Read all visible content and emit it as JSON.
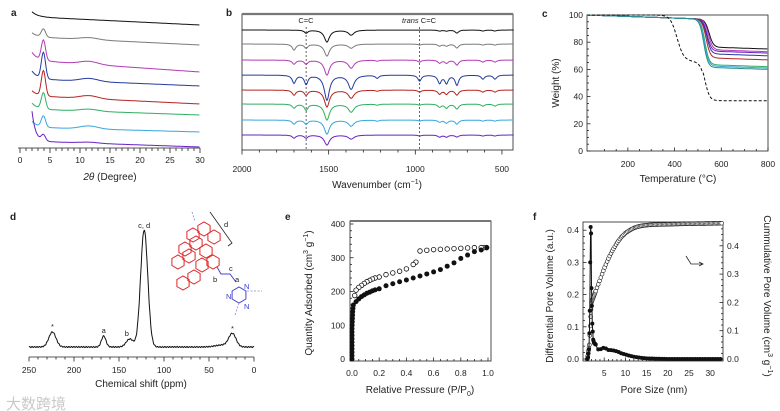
{
  "watermark": "大数跨境",
  "chart_data": [
    {
      "panel": "a",
      "type": "line",
      "xlabel": "2θ (Degree)",
      "xlim": [
        0,
        30
      ],
      "xticks": [
        "0",
        "5",
        "10",
        "15",
        "20",
        "25",
        "30"
      ],
      "yaxis": "stacked intensity (a.u., unlabeled)",
      "series": [
        {
          "color": "#111111",
          "b6": 130,
          "b30": 123,
          "low": 5,
          "peak": 0,
          "hump": 0
        },
        {
          "color": "#7a7a7a",
          "b6": 110,
          "b30": 103,
          "low": 4,
          "peak": 8,
          "hump": 2
        },
        {
          "color": "#b23ab4",
          "b6": 86,
          "b30": 76,
          "low": 8,
          "peak": 20,
          "hump": 3
        },
        {
          "color": "#263a9e",
          "b6": 68,
          "b30": 62,
          "low": 8,
          "peak": 26,
          "hump": 3
        },
        {
          "color": "#b32424",
          "b6": 51,
          "b30": 44,
          "low": 5,
          "peak": 25,
          "hump": 3
        },
        {
          "color": "#2fae62",
          "b6": 38,
          "b30": 33,
          "low": 6,
          "peak": 16,
          "hump": 2
        },
        {
          "color": "#36a6df",
          "b6": 20,
          "b30": 16,
          "low": 6,
          "peak": 11,
          "hump": 3
        },
        {
          "color": "#6a20c4",
          "b6": 6,
          "b30": 1,
          "low": 30,
          "peak": 6,
          "hump": 1
        }
      ]
    },
    {
      "panel": "b",
      "type": "line",
      "xlabel": "Wavenumber (cm",
      "xlabel_sup": "−1",
      "xlabel_end": ")",
      "xlim": [
        2000,
        430
      ],
      "xticks": [
        "2000",
        "1500",
        "1000",
        "500"
      ],
      "annotations": {
        "cc": "C=C",
        "trans_italic": "trans",
        "trans_rest": " C=C"
      },
      "annotation_positions": [
        1630,
        975
      ],
      "peak_positions": [
        1700,
        1630,
        1510,
        1370,
        1220,
        975,
        860,
        820,
        760,
        610,
        540
      ],
      "series": [
        {
          "color": "#111111",
          "depths": [
            0,
            3,
            12,
            5,
            0,
            0,
            1,
            1,
            3,
            1,
            1
          ]
        },
        {
          "color": "#7a7a7a",
          "depths": [
            6,
            4,
            12,
            4,
            0,
            1,
            2,
            2,
            4,
            1,
            1
          ]
        },
        {
          "color": "#b23ab4",
          "depths": [
            4,
            4,
            15,
            8,
            1,
            2,
            3,
            3,
            5,
            2,
            2
          ]
        },
        {
          "color": "#263a9e",
          "depths": [
            8,
            9,
            25,
            14,
            3,
            6,
            8,
            8,
            10,
            4,
            4
          ]
        },
        {
          "color": "#b32424",
          "depths": [
            5,
            5,
            17,
            8,
            1,
            2,
            4,
            4,
            5,
            2,
            2
          ]
        },
        {
          "color": "#2fae62",
          "depths": [
            4,
            6,
            16,
            8,
            1,
            1,
            3,
            4,
            5,
            2,
            2
          ]
        },
        {
          "color": "#36a6df",
          "depths": [
            4,
            4,
            14,
            6,
            1,
            1,
            2,
            3,
            4,
            1,
            1
          ]
        },
        {
          "color": "#6a20c4",
          "depths": [
            3,
            3,
            10,
            4,
            0,
            1,
            2,
            2,
            2,
            1,
            1
          ]
        }
      ]
    },
    {
      "panel": "c",
      "type": "line",
      "xlabel": "Temperature (°C)",
      "ylabel": "Weight (%)",
      "xlim": [
        25,
        800
      ],
      "ylim": [
        0,
        100
      ],
      "xticks": [
        "200",
        "400",
        "600",
        "800"
      ],
      "yticks": [
        "0",
        "20",
        "40",
        "60",
        "80",
        "100"
      ],
      "series": [
        {
          "color": "#111111",
          "onset": 548,
          "residue": 75
        },
        {
          "color": "#b23ab4",
          "onset": 545,
          "residue": 73
        },
        {
          "color": "#6a20c4",
          "onset": 540,
          "residue": 72
        },
        {
          "color": "#263a9e",
          "onset": 538,
          "residue": 70
        },
        {
          "color": "#b32424",
          "onset": 535,
          "residue": 67
        },
        {
          "color": "#2fae62",
          "onset": 530,
          "residue": 62
        },
        {
          "color": "#36a6df",
          "onset": 528,
          "residue": 61
        },
        {
          "color": "#2a8f8f",
          "onset": 525,
          "residue": 60
        }
      ],
      "dashed": {
        "color": "#111111",
        "step1": 410,
        "level1": 67,
        "step2": 530,
        "residue": 37
      }
    },
    {
      "panel": "d",
      "type": "line",
      "xlabel": "Chemical shift (ppm)",
      "xlim": [
        250,
        0
      ],
      "xticks": [
        "250",
        "200",
        "150",
        "100",
        "50",
        "0"
      ],
      "peaks": [
        {
          "ppm": 224,
          "height": 15,
          "width": 4,
          "label": "*"
        },
        {
          "ppm": 167,
          "height": 11,
          "width": 2.5,
          "label": "a"
        },
        {
          "ppm": 138,
          "height": 8,
          "width": 4,
          "label": "b"
        },
        {
          "ppm": 122,
          "height": 117,
          "width": 4,
          "label": "c, d"
        },
        {
          "ppm": 35,
          "height": 2,
          "width": 8,
          "label": ""
        },
        {
          "ppm": 24,
          "height": 13,
          "width": 4,
          "label": "*"
        }
      ],
      "structure_labels": {
        "a": "a",
        "b": "b",
        "c": "c",
        "d": "d",
        "n": "N"
      }
    },
    {
      "panel": "e",
      "type": "scatter",
      "xlabel": "Relative Pressure (P/P",
      "xlabel_sub": "0",
      "xlabel_end": ")",
      "ylabel": "Quantity Adsorbed (cm",
      "ylabel_sup": "3",
      "ylabel_mid": " g",
      "ylabel_sup2": "−1",
      "ylabel_end": ")",
      "xlim": [
        0,
        1
      ],
      "ylim": [
        0,
        400
      ],
      "xticks": [
        "0.0",
        "0.2",
        "0.4",
        "0.6",
        "0.8",
        "1.0"
      ],
      "yticks": [
        "0",
        "100",
        "200",
        "300",
        "400"
      ],
      "adsorption": [
        [
          0,
          0
        ],
        [
          0,
          10
        ],
        [
          0,
          20
        ],
        [
          0,
          30
        ],
        [
          0,
          40
        ],
        [
          0,
          50
        ],
        [
          0,
          60
        ],
        [
          0,
          70
        ],
        [
          0,
          80
        ],
        [
          0,
          90
        ],
        [
          0.001,
          100
        ],
        [
          0.002,
          110
        ],
        [
          0.003,
          120
        ],
        [
          0.004,
          130
        ],
        [
          0.005,
          140
        ],
        [
          0.007,
          150
        ],
        [
          0.01,
          160
        ],
        [
          0.03,
          170
        ],
        [
          0.05,
          178
        ],
        [
          0.07,
          185
        ],
        [
          0.09,
          190
        ],
        [
          0.11,
          195
        ],
        [
          0.13,
          198
        ],
        [
          0.15,
          202
        ],
        [
          0.17,
          205
        ],
        [
          0.2,
          208
        ],
        [
          0.25,
          217
        ],
        [
          0.3,
          223
        ],
        [
          0.35,
          229
        ],
        [
          0.4,
          234
        ],
        [
          0.45,
          240
        ],
        [
          0.5,
          246
        ],
        [
          0.55,
          252
        ],
        [
          0.6,
          258
        ],
        [
          0.65,
          265
        ],
        [
          0.7,
          275
        ],
        [
          0.75,
          285
        ],
        [
          0.8,
          298
        ],
        [
          0.85,
          308
        ],
        [
          0.9,
          318
        ],
        [
          0.95,
          323
        ],
        [
          0.99,
          330
        ]
      ],
      "desorption": [
        [
          0.99,
          330
        ],
        [
          0.97,
          330
        ],
        [
          0.95,
          330
        ],
        [
          0.9,
          330
        ],
        [
          0.85,
          329
        ],
        [
          0.8,
          328
        ],
        [
          0.75,
          327
        ],
        [
          0.7,
          326
        ],
        [
          0.65,
          325
        ],
        [
          0.6,
          324
        ],
        [
          0.55,
          322
        ],
        [
          0.5,
          320
        ],
        [
          0.47,
          287
        ],
        [
          0.45,
          280
        ],
        [
          0.4,
          267
        ],
        [
          0.35,
          260
        ],
        [
          0.3,
          255
        ],
        [
          0.25,
          250
        ],
        [
          0.2,
          243
        ],
        [
          0.17,
          240
        ],
        [
          0.15,
          237
        ],
        [
          0.13,
          233
        ],
        [
          0.11,
          229
        ],
        [
          0.09,
          224
        ],
        [
          0.07,
          218
        ],
        [
          0.05,
          212
        ],
        [
          0.03,
          204
        ],
        [
          0.02,
          188
        ]
      ]
    },
    {
      "panel": "f",
      "type": "scatter",
      "xlabel": "Pore Size (nm)",
      "ylabel_left": "Differential Pore Volume (a.u.)",
      "ylabel_right": "Cummulative Pore Volume (cm",
      "ylabel_right_sup": "3",
      "ylabel_right_mid": " g",
      "ylabel_right_sup2": "−1",
      "ylabel_right_end": ")",
      "xlim": [
        0,
        34
      ],
      "ylim_left": [
        0,
        0.43
      ],
      "ylim_right": [
        0,
        0.48
      ],
      "xticks": [
        "5",
        "10",
        "15",
        "20",
        "25",
        "30"
      ],
      "yticks_left": [
        "0.0",
        "0.1",
        "0.2",
        "0.3",
        "0.4"
      ],
      "yticks_right": [
        "0.0",
        "0.1",
        "0.2",
        "0.3",
        "0.4"
      ],
      "differential": [
        [
          1.0,
          0
        ],
        [
          1.2,
          0.005
        ],
        [
          1.4,
          0.03
        ],
        [
          1.5,
          0.08
        ],
        [
          1.6,
          0.15
        ],
        [
          1.7,
          0.3
        ],
        [
          1.8,
          0.41
        ],
        [
          1.9,
          0.39
        ],
        [
          2.0,
          0.22
        ],
        [
          2.2,
          0.11
        ],
        [
          2.4,
          0.06
        ],
        [
          2.6,
          0.05
        ],
        [
          3,
          0.045
        ],
        [
          3.5,
          0.03
        ],
        [
          4,
          0.03
        ],
        [
          4.5,
          0.032
        ],
        [
          5,
          0.036
        ],
        [
          5.5,
          0.032
        ],
        [
          6,
          0.028
        ],
        [
          7,
          0.027
        ],
        [
          8,
          0.024
        ],
        [
          9,
          0.018
        ],
        [
          10,
          0.014
        ],
        [
          11,
          0.01
        ],
        [
          12,
          0.007
        ],
        [
          13,
          0.005
        ],
        [
          14,
          0.003
        ],
        [
          15,
          0.002
        ],
        [
          17,
          0.001
        ],
        [
          20,
          0
        ],
        [
          25,
          0
        ],
        [
          30,
          0
        ],
        [
          33,
          0
        ]
      ],
      "cumulative": [
        [
          1,
          0
        ],
        [
          1.5,
          0.05
        ],
        [
          1.8,
          0.15
        ],
        [
          2,
          0.2
        ],
        [
          2.5,
          0.22
        ],
        [
          3,
          0.24
        ],
        [
          4,
          0.28
        ],
        [
          5,
          0.32
        ],
        [
          6,
          0.355
        ],
        [
          7,
          0.385
        ],
        [
          8,
          0.41
        ],
        [
          9,
          0.43
        ],
        [
          10,
          0.445
        ],
        [
          11,
          0.455
        ],
        [
          12,
          0.463
        ],
        [
          13,
          0.468
        ],
        [
          14,
          0.471
        ],
        [
          15,
          0.473
        ],
        [
          17,
          0.475
        ],
        [
          20,
          0.476
        ],
        [
          25,
          0.478
        ],
        [
          30,
          0.479
        ],
        [
          33,
          0.48
        ]
      ]
    }
  ]
}
